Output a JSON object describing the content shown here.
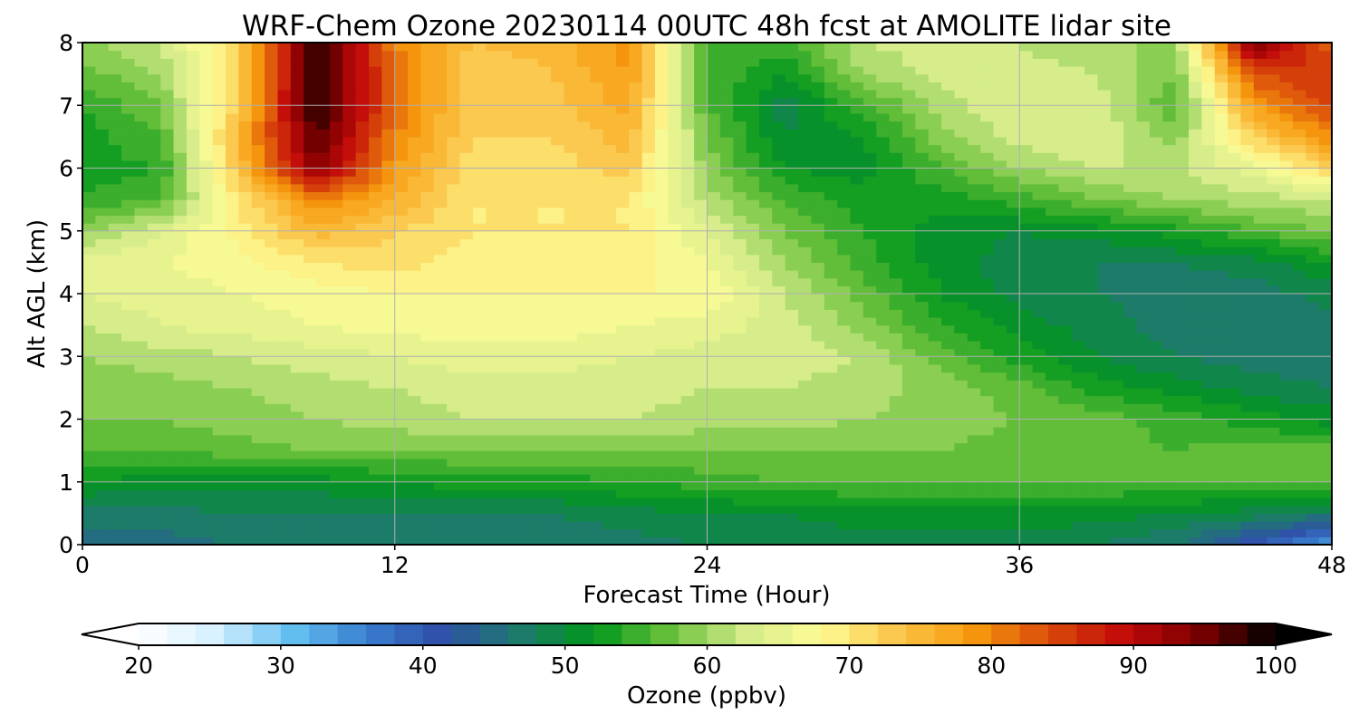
{
  "chart_data": {
    "type": "heatmap",
    "title": "WRF-Chem Ozone  20230114 00UTC 48h fcst at AMOLITE lidar site",
    "xlabel": "Forecast Time (Hour)",
    "ylabel": "Alt AGL (km)",
    "xlim": [
      0,
      48
    ],
    "ylim": [
      0,
      8
    ],
    "x_ticks": [
      0,
      12,
      24,
      36,
      48
    ],
    "y_ticks": [
      0,
      1,
      2,
      3,
      4,
      5,
      6,
      7,
      8
    ],
    "grid": true,
    "x": [
      0,
      3,
      6,
      9,
      12,
      15,
      18,
      21,
      24,
      27,
      30,
      33,
      36,
      39,
      42,
      45,
      48
    ],
    "y": [
      0,
      0.5,
      1,
      1.5,
      2,
      2.5,
      3,
      3.5,
      4,
      4.5,
      5,
      5.5,
      6,
      6.5,
      7,
      7.5,
      8
    ],
    "z": [
      [
        45,
        45,
        46,
        46,
        47,
        47,
        47,
        47,
        48,
        49,
        49,
        49,
        49,
        48,
        46,
        40,
        33
      ],
      [
        47,
        47,
        48,
        48,
        48,
        48,
        48,
        49,
        50,
        50,
        51,
        51,
        51,
        51,
        50,
        49,
        47
      ],
      [
        52,
        51,
        51,
        51,
        52,
        53,
        53,
        54,
        55,
        56,
        56,
        56,
        56,
        56,
        56,
        56,
        56
      ],
      [
        56,
        56,
        57,
        58,
        58,
        58,
        58,
        58,
        58,
        58,
        58,
        58,
        57,
        57,
        56,
        57,
        57
      ],
      [
        58,
        58,
        59,
        60,
        61,
        62,
        62,
        62,
        61,
        61,
        60,
        59,
        58,
        57,
        55,
        53,
        51
      ],
      [
        58,
        59,
        60,
        61,
        62,
        63,
        63,
        63,
        62,
        62,
        61,
        59,
        57,
        53,
        51,
        49,
        48
      ],
      [
        60,
        61,
        62,
        63,
        64,
        65,
        65,
        64,
        63,
        63,
        62,
        57,
        53,
        50,
        48,
        47,
        47
      ],
      [
        62,
        64,
        65,
        66,
        67,
        67,
        67,
        66,
        65,
        63,
        59,
        54,
        51,
        49,
        47,
        46,
        47
      ],
      [
        64,
        65,
        66,
        67,
        68,
        68,
        68,
        68,
        68,
        62,
        57,
        52,
        49,
        48,
        47,
        47,
        49
      ],
      [
        65,
        66,
        67,
        70,
        71,
        69,
        69,
        69,
        66,
        60,
        55,
        51,
        49,
        48,
        48,
        49,
        52
      ],
      [
        59,
        64,
        69,
        75,
        72,
        70,
        70,
        70,
        64,
        58,
        54,
        51,
        50,
        51,
        53,
        56,
        58
      ],
      [
        54,
        56,
        70,
        80,
        76,
        70,
        70,
        70,
        61,
        56,
        53,
        53,
        55,
        58,
        60,
        61,
        62
      ],
      [
        53,
        54,
        74,
        94,
        78,
        71,
        71,
        73,
        59,
        52,
        51,
        56,
        60,
        62,
        62,
        65,
        72
      ],
      [
        53,
        56,
        75,
        97,
        80,
        72,
        72,
        75,
        58,
        50,
        52,
        59,
        63,
        64,
        59,
        72,
        80
      ],
      [
        54,
        58,
        73,
        99,
        82,
        72,
        73,
        77,
        56,
        49,
        55,
        61,
        64,
        63,
        56,
        78,
        85
      ],
      [
        57,
        60,
        72,
        99,
        82,
        72,
        74,
        78,
        56,
        52,
        60,
        63,
        63,
        62,
        58,
        84,
        86
      ],
      [
        59,
        62,
        72,
        99,
        80,
        74,
        75,
        79,
        56,
        55,
        62,
        63,
        62,
        60,
        60,
        95,
        82
      ]
    ],
    "colorbar": {
      "label": "Ozone  (ppbv)",
      "min": 20,
      "max": 100,
      "step": 2,
      "extend": "both",
      "ticks": [
        20,
        30,
        40,
        50,
        60,
        70,
        80,
        90,
        100
      ],
      "colors": [
        "#ffffff",
        "#d8f0ff",
        "#66c2f2",
        "#3a7fd0",
        "#2f4fa8",
        "#1f7a6e",
        "#00961c",
        "#68c03a",
        "#d4ec8a",
        "#fefc96",
        "#fbc64a",
        "#f79a0e",
        "#d94b0a",
        "#c20a0a",
        "#7a0000",
        "#000000"
      ]
    }
  }
}
